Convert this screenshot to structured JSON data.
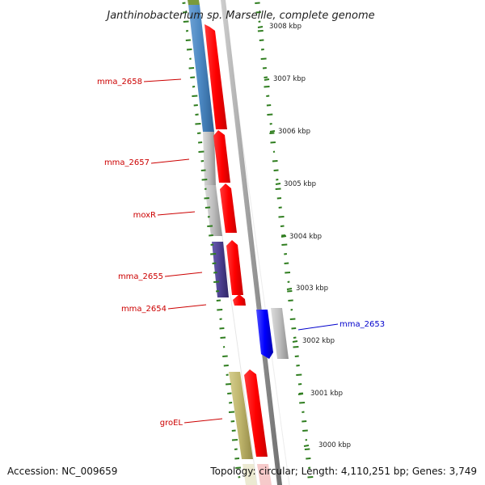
{
  "title": "Janthinobacterium sp. Marseille, complete genome",
  "footer": {
    "accession": "Accession: NC_009659",
    "topology": "Topology: circular; Length: 4,110,251 bp; Genes: 3,749"
  },
  "ticks": [
    "3008 kbp",
    "3007 kbp",
    "3006 kbp",
    "3005 kbp",
    "3004 kbp",
    "3003 kbp",
    "3002 kbp",
    "3001 kbp",
    "3000 kbp"
  ],
  "gene_labels": {
    "mma_2658": "mma_2658",
    "mma_2657": "mma_2657",
    "moxR": "moxR",
    "mma_2655": "mma_2655",
    "mma_2654": "mma_2654",
    "mma_2653": "mma_2653",
    "groEL": "groEL"
  },
  "colors": {
    "cds": "#ff0000",
    "cog_steelblue": "#4a86c0",
    "cog_gray": "#bdbdbd",
    "cog_purple": "#4b3f8f",
    "cog_olive": "#bdb36a",
    "reverse_gene": "#0000ff",
    "label_forward": "#cc0000",
    "label_reverse": "#0000cc",
    "gc_skew": "#2e7d1e",
    "backbone": "#888888"
  }
}
